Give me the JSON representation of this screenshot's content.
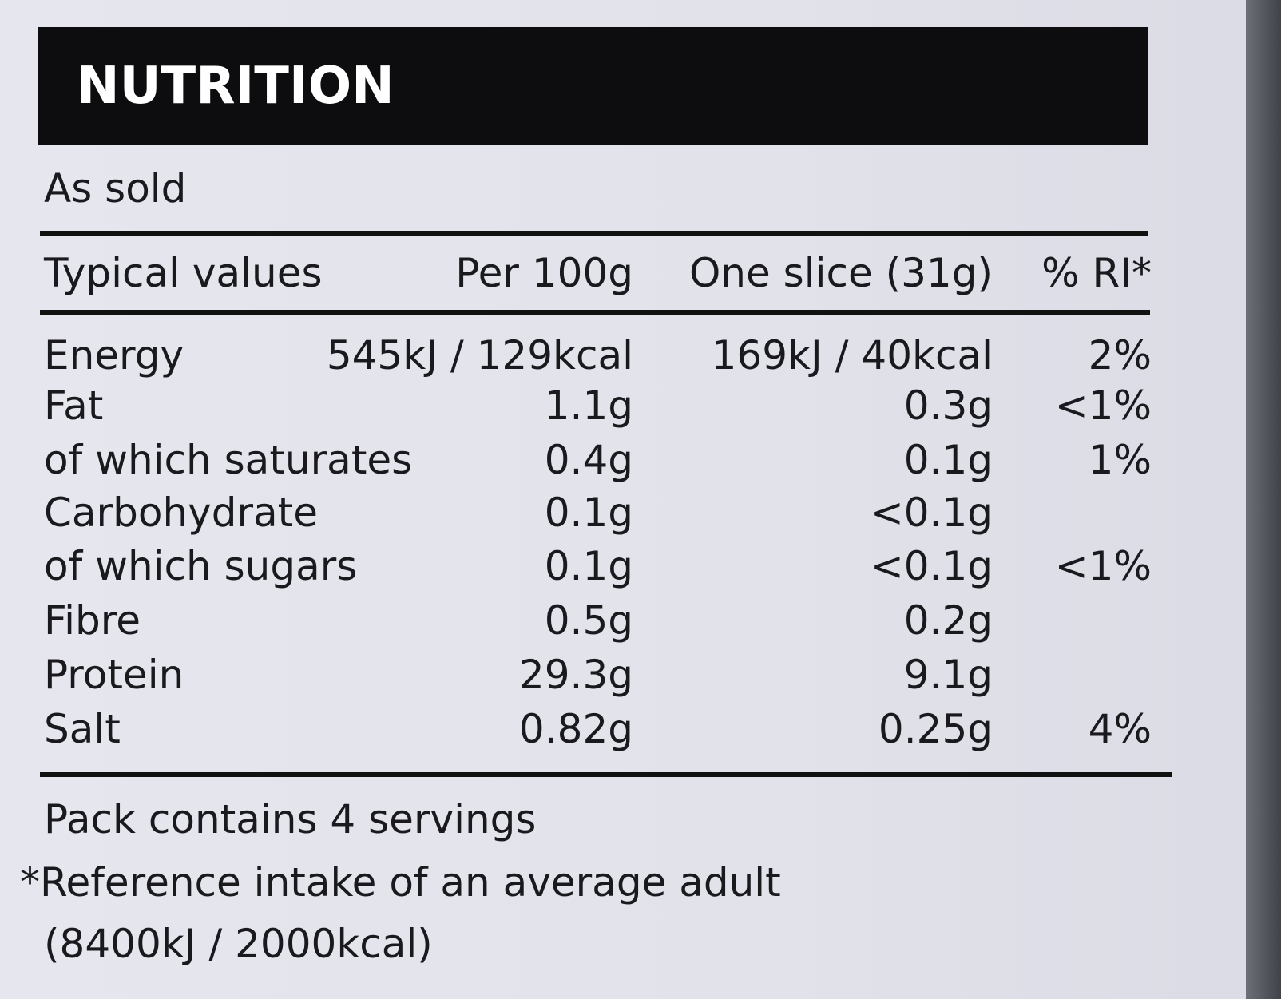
{
  "header": {
    "title": "NUTRITION",
    "subtitle": "As sold"
  },
  "table": {
    "header": [
      "Typical values",
      "Per 100g",
      "One slice (31g)",
      "% RI*"
    ],
    "rows": [
      [
        "Energy",
        "545kJ / 129kcal",
        "169kJ / 40kcal",
        "2%"
      ],
      [
        "Fat",
        "1.1g",
        "0.3g",
        "<1%"
      ],
      [
        "of which saturates",
        "0.4g",
        "0.1g",
        "1%"
      ],
      [
        "Carbohydrate",
        "0.1g",
        "<0.1g"
      ],
      [
        "of which sugars",
        "0.1g",
        "<0.1g",
        "<1%"
      ],
      [
        "Fibre",
        "0.5g",
        "0.2g"
      ],
      [
        "Protein",
        "29.3g",
        "9.1g"
      ],
      [
        "Salt",
        "0.82g",
        "0.25g",
        "4%"
      ]
    ]
  },
  "footer": {
    "notes": [
      "Pack contains 4 servings",
      "*Reference intake of an average adult",
      "(8400kJ / 2000kcal)"
    ]
  }
}
